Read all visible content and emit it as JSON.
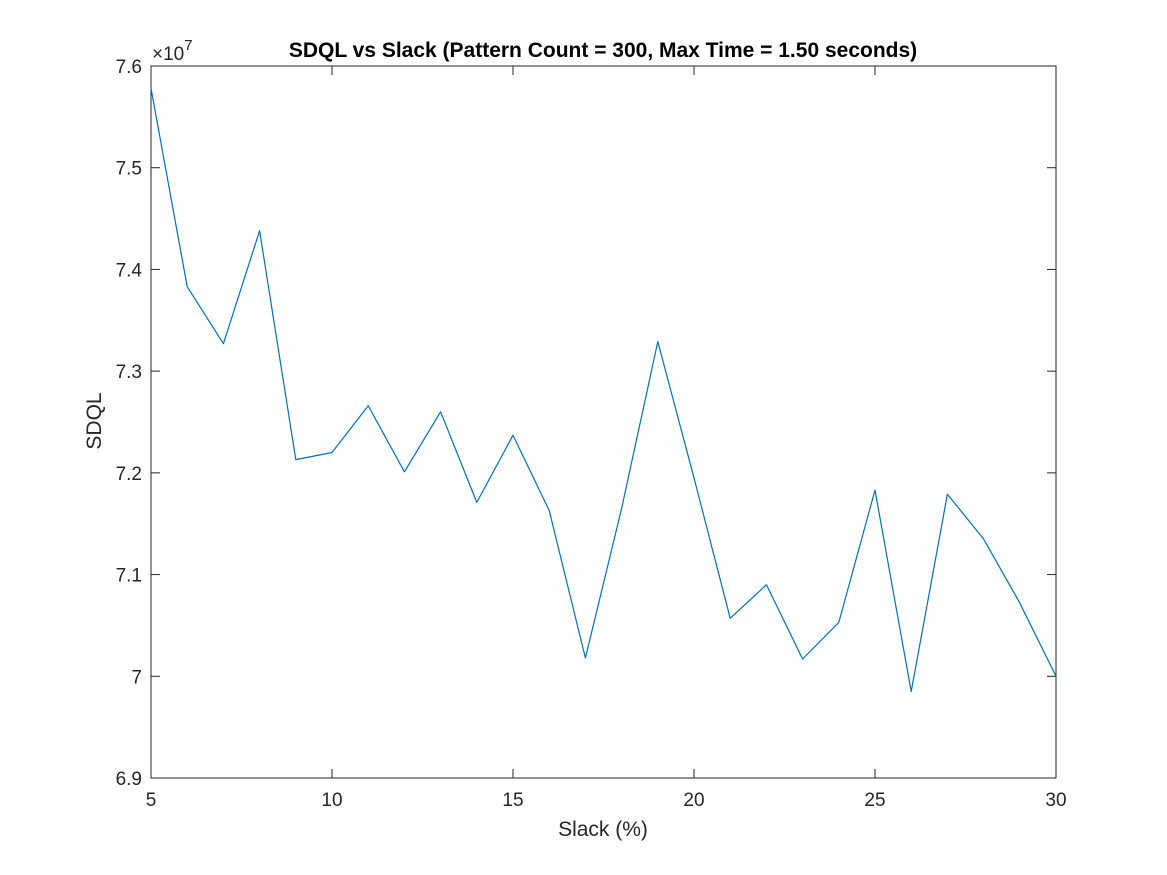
{
  "chart_data": {
    "type": "line",
    "title": "SDQL vs Slack (Pattern Count = 300, Max Time = 1.50 seconds)",
    "xlabel": "Slack (%)",
    "ylabel": "SDQL",
    "xlim": [
      5,
      30
    ],
    "ylim": [
      6.9,
      7.6
    ],
    "y_exponent_base": "×10",
    "y_exponent_power": "7",
    "xticks": [
      5,
      10,
      15,
      20,
      25,
      30
    ],
    "xtick_labels": [
      "5",
      "10",
      "15",
      "20",
      "25",
      "30"
    ],
    "yticks": [
      6.9,
      7.0,
      7.1,
      7.2,
      7.3,
      7.4,
      7.5,
      7.6
    ],
    "ytick_labels": [
      "6.9",
      "7",
      "7.1",
      "7.2",
      "7.3",
      "7.4",
      "7.5",
      "7.6"
    ],
    "grid": false,
    "series": [
      {
        "color": "#0072BD",
        "x": [
          5,
          6,
          7,
          8,
          9,
          10,
          11,
          12,
          13,
          14,
          15,
          16,
          17,
          18,
          19,
          20,
          21,
          22,
          23,
          24,
          25,
          26,
          27,
          28,
          29,
          30
        ],
        "y": [
          7.578,
          7.383,
          7.327,
          7.438,
          7.213,
          7.22,
          7.266,
          7.201,
          7.26,
          7.171,
          7.237,
          7.163,
          7.018,
          7.165,
          7.329,
          7.195,
          7.057,
          7.09,
          7.017,
          7.053,
          7.183,
          6.985,
          7.179,
          7.135,
          7.072,
          7.0
        ]
      }
    ]
  }
}
